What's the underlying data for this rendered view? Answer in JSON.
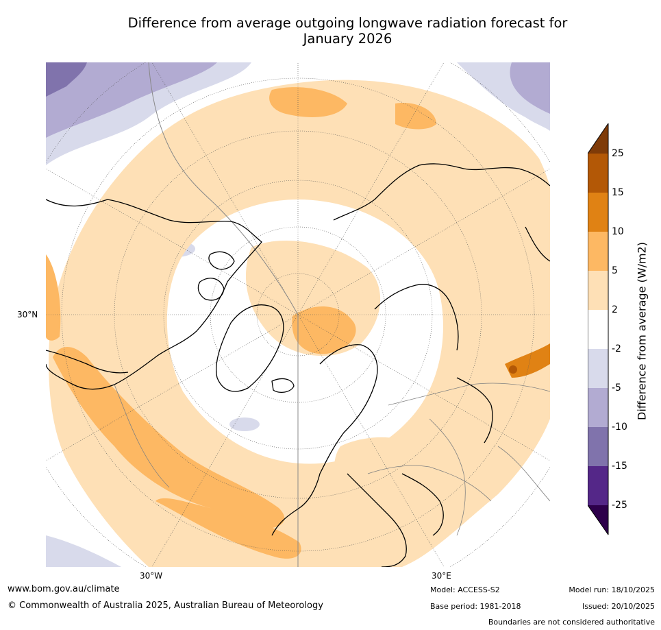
{
  "title_line1": "Difference from average outgoing longwave radiation forecast for",
  "title_line2": "January 2026",
  "map": {
    "projection": "north-polar-stereographic",
    "labels": {
      "lat": "30°N",
      "lon_w": "30°W",
      "lon_e": "30°E"
    },
    "land_fill": "#ffffff",
    "coastline_color": "#000000",
    "border_color": "#808080"
  },
  "legend": {
    "title": "Difference from average (W/m2)",
    "ticks": [
      "25",
      "15",
      "10",
      "5",
      "2",
      "-2",
      "-5",
      "-10",
      "-15",
      "-25"
    ],
    "colors": {
      "above_25": "#7f3b08",
      "15_to_25": "#b35806",
      "10_to_15": "#e08214",
      "5_to_10": "#fdb863",
      "2_to_5": "#fee0b6",
      "-2_to_2": "#ffffff",
      "-5_to_-2": "#d8daeb",
      "-10_to_-5": "#b2abd2",
      "-15_to_-10": "#8073ac",
      "-25_to_-15": "#542788",
      "below_-25": "#2d004b"
    }
  },
  "footer": {
    "website": "www.bom.gov.au/climate",
    "copyright": "© Commonwealth of Australia 2025, Australian Bureau of Meteorology",
    "model": "Model: ACCESS-S2",
    "base_period": "Base period: 1981-2018",
    "model_run": "Model run: 18/10/2025",
    "issued": "Issued: 20/10/2025",
    "disclaimer": "Boundaries are not considered authoritative"
  }
}
